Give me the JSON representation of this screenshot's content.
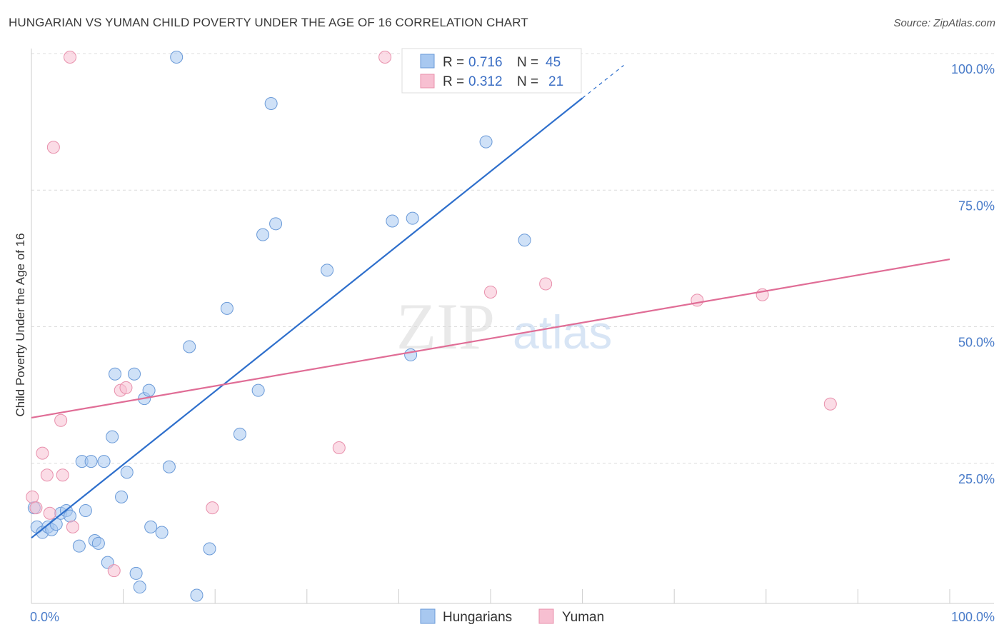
{
  "title": "HUNGARIAN VS YUMAN CHILD POVERTY UNDER THE AGE OF 16 CORRELATION CHART",
  "source": "Source: ZipAtlas.com",
  "watermark": {
    "zip": "ZIP",
    "atlas": "atlas"
  },
  "chart_data": {
    "type": "scatter",
    "ylabel": "Child Poverty Under the Age of 16",
    "xlabel": "",
    "xlim": [
      0,
      100
    ],
    "ylim": [
      0,
      100
    ],
    "x_tick_labels": [
      "0.0%",
      "100.0%"
    ],
    "y_ticks": [
      25,
      50,
      75,
      100
    ],
    "y_tick_labels": [
      "25.0%",
      "50.0%",
      "75.0%",
      "100.0%"
    ],
    "grid": true,
    "legend": {
      "placement": "top-center",
      "entries": [
        {
          "r_label": "R = ",
          "r_value": "0.716",
          "n_label": "N = ",
          "n_value": "45"
        },
        {
          "r_label": "R = ",
          "r_value": "0.312",
          "n_label": "N = ",
          "n_value": "21"
        }
      ]
    },
    "series": [
      {
        "name": "Hungarians",
        "color": "#a8c8f0",
        "stroke": "#6a9ad8",
        "line_color": "#2e6fcc",
        "trend": {
          "x0": 0,
          "y0": 12,
          "x1": 60,
          "y1": 92.5,
          "dash_x1": 64.5,
          "dash_y1": 98.5
        },
        "points": [
          [
            0.3,
            17.5
          ],
          [
            0.6,
            14
          ],
          [
            1.2,
            13
          ],
          [
            1.8,
            14
          ],
          [
            2.2,
            13.5
          ],
          [
            2.7,
            14.5
          ],
          [
            3.2,
            16.5
          ],
          [
            3.8,
            17
          ],
          [
            4.2,
            16
          ],
          [
            5.2,
            10.5
          ],
          [
            5.5,
            26
          ],
          [
            5.9,
            17
          ],
          [
            6.5,
            26
          ],
          [
            6.9,
            11.5
          ],
          [
            7.3,
            11
          ],
          [
            7.9,
            26
          ],
          [
            8.3,
            7.5
          ],
          [
            8.8,
            30.5
          ],
          [
            9.1,
            42
          ],
          [
            9.8,
            19.5
          ],
          [
            10.4,
            24
          ],
          [
            11.2,
            42
          ],
          [
            11.4,
            5.5
          ],
          [
            11.8,
            3
          ],
          [
            12.3,
            37.5
          ],
          [
            12.8,
            39
          ],
          [
            13.0,
            14
          ],
          [
            14.2,
            13
          ],
          [
            15.0,
            25
          ],
          [
            15.8,
            100
          ],
          [
            17.2,
            47
          ],
          [
            18.0,
            1.5
          ],
          [
            19.4,
            10
          ],
          [
            21.3,
            54
          ],
          [
            22.7,
            31
          ],
          [
            24.7,
            39
          ],
          [
            25.2,
            67.5
          ],
          [
            26.1,
            91.5
          ],
          [
            26.6,
            69.5
          ],
          [
            32.2,
            61
          ],
          [
            39.3,
            70
          ],
          [
            41.3,
            45.5
          ],
          [
            41.5,
            70.5
          ],
          [
            49.5,
            84.5
          ],
          [
            53.7,
            66.5
          ]
        ]
      },
      {
        "name": "Yuman",
        "color": "#f7bfd1",
        "stroke": "#e890ac",
        "line_color": "#e06d96",
        "trend": {
          "x0": 0,
          "y0": 34,
          "x1": 100,
          "y1": 63
        },
        "points": [
          [
            0.1,
            19.5
          ],
          [
            0.5,
            17.5
          ],
          [
            1.2,
            27.5
          ],
          [
            1.7,
            23.5
          ],
          [
            2.0,
            16.5
          ],
          [
            2.4,
            83.5
          ],
          [
            3.2,
            33.5
          ],
          [
            3.4,
            23.5
          ],
          [
            4.2,
            100
          ],
          [
            4.5,
            14
          ],
          [
            9.0,
            6
          ],
          [
            9.7,
            39
          ],
          [
            10.3,
            39.5
          ],
          [
            19.7,
            17.5
          ],
          [
            33.5,
            28.5
          ],
          [
            38.5,
            100
          ],
          [
            50.0,
            57
          ],
          [
            56.0,
            58.5
          ],
          [
            72.5,
            55.5
          ],
          [
            79.6,
            56.5
          ],
          [
            87.0,
            36.5
          ]
        ]
      }
    ]
  }
}
